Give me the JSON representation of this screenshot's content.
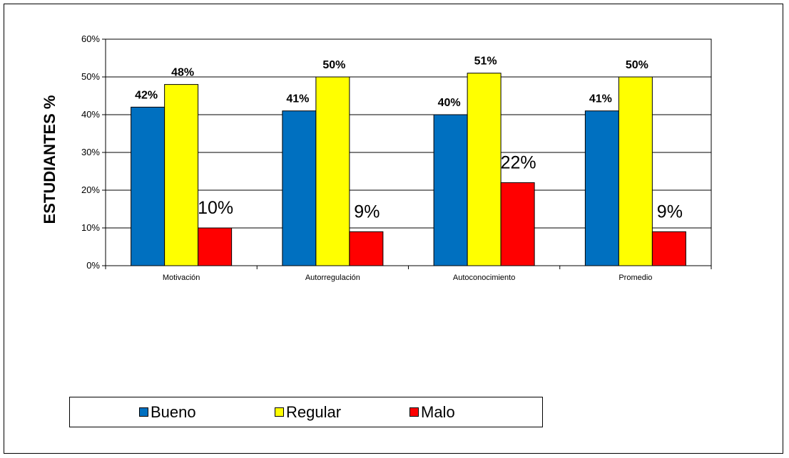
{
  "chart_data": {
    "type": "bar",
    "categories": [
      "Motivación",
      "Autorregulación",
      "Autoconocimiento",
      "Promedio"
    ],
    "series": [
      {
        "name": "Bueno",
        "color": "#0070C0",
        "values": [
          42,
          41,
          40,
          41
        ],
        "labels": [
          "42%",
          "41%",
          "40%",
          "41%"
        ]
      },
      {
        "name": "Regular",
        "color": "#FFFF00",
        "values": [
          48,
          50,
          51,
          50
        ],
        "labels": [
          "48%",
          "50%",
          "51%",
          "50%"
        ]
      },
      {
        "name": "Malo",
        "color": "#FF0000",
        "values": [
          10,
          9,
          22,
          9
        ],
        "labels": [
          "10%",
          "9%",
          "22%",
          "9%"
        ]
      }
    ],
    "ylabel": "ESTUDIANTES %",
    "ylim": [
      0,
      60
    ],
    "yticks": [
      0,
      10,
      20,
      30,
      40,
      50,
      60
    ],
    "ytick_labels": [
      "0%",
      "10%",
      "20%",
      "30%",
      "40%",
      "50%",
      "60%"
    ],
    "grid": true,
    "legend_position": "bottom"
  }
}
